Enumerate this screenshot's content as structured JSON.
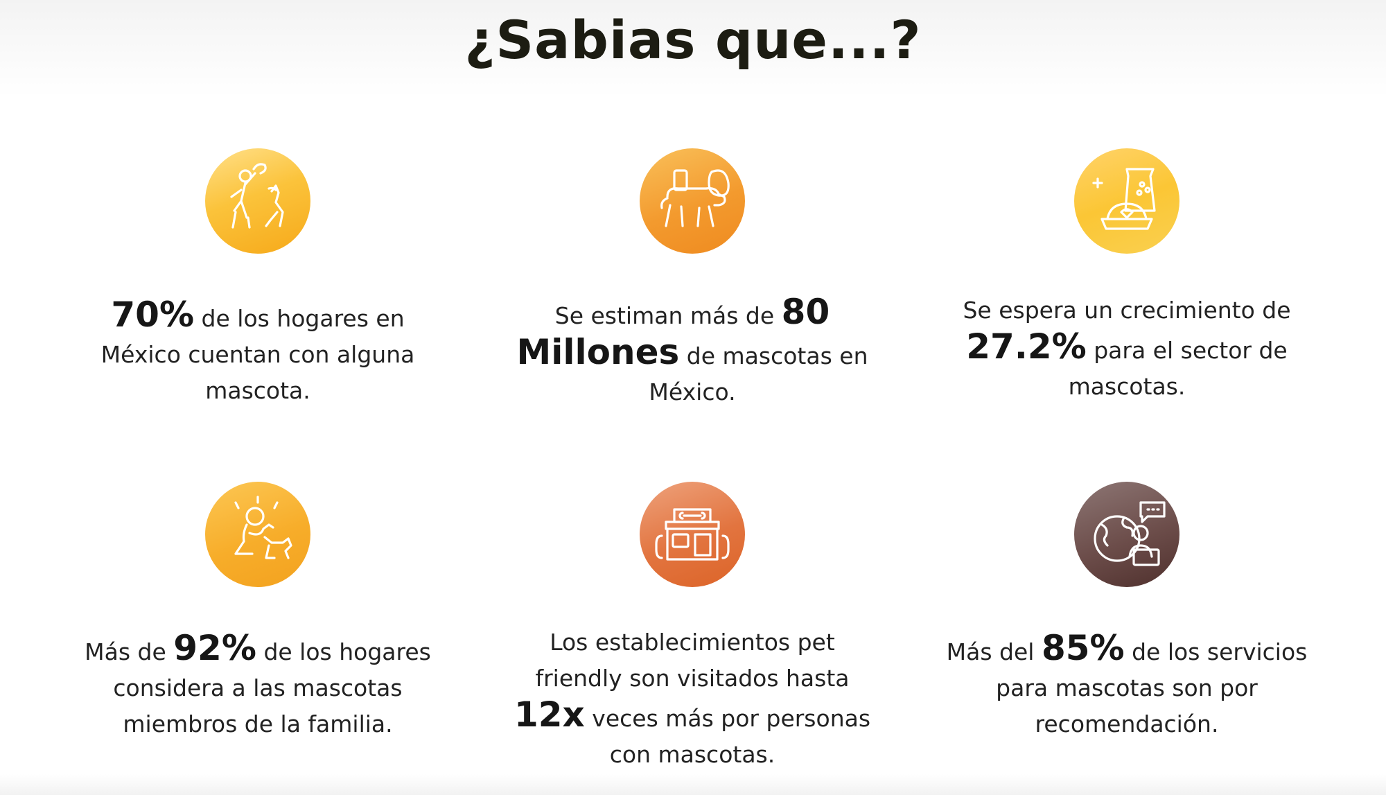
{
  "title": "¿Sabias que...?",
  "colors": {
    "title": "#1c1c12",
    "text": "#222222",
    "icon_yellow": "#fbc33b",
    "icon_orange": "#f39a2e",
    "icon_coral": "#e2743f",
    "icon_brown": "#6c4d4a"
  },
  "facts": [
    {
      "icon": "person-playing-with-dog-icon",
      "big": "70%",
      "line1_after": " de los hogares en",
      "line2": "México cuentan con alguna",
      "line3": "mascota."
    },
    {
      "icon": "dog-with-backpack-icon",
      "line1_before": "Se estiman más de ",
      "big1": "80",
      "big2": "Millones",
      "line2_after": " de mascotas en",
      "line3": "México."
    },
    {
      "icon": "pet-food-bag-bowl-icon",
      "line1": "Se espera un crecimiento de",
      "big": "27.2%",
      "line2_after": " para el sector de",
      "line3": "mascotas."
    },
    {
      "icon": "person-hugging-dog-icon",
      "line1_before": "Más de ",
      "big": "92%",
      "line1_after": " de los hogares",
      "line2": "considera a las mascotas",
      "line3": "miembros de la familia."
    },
    {
      "icon": "pet-shop-building-icon",
      "line1": "Los establecimientos pet",
      "line2": "friendly son visitados hasta",
      "big": "12x",
      "line3_after": " veces más por personas",
      "line4": "con mascotas."
    },
    {
      "icon": "globe-person-chat-icon",
      "line1_before": "Más del ",
      "big": "85%",
      "line1_after": " de los servicios",
      "line2": "para mascotas son por",
      "line3": "recomendación."
    }
  ]
}
